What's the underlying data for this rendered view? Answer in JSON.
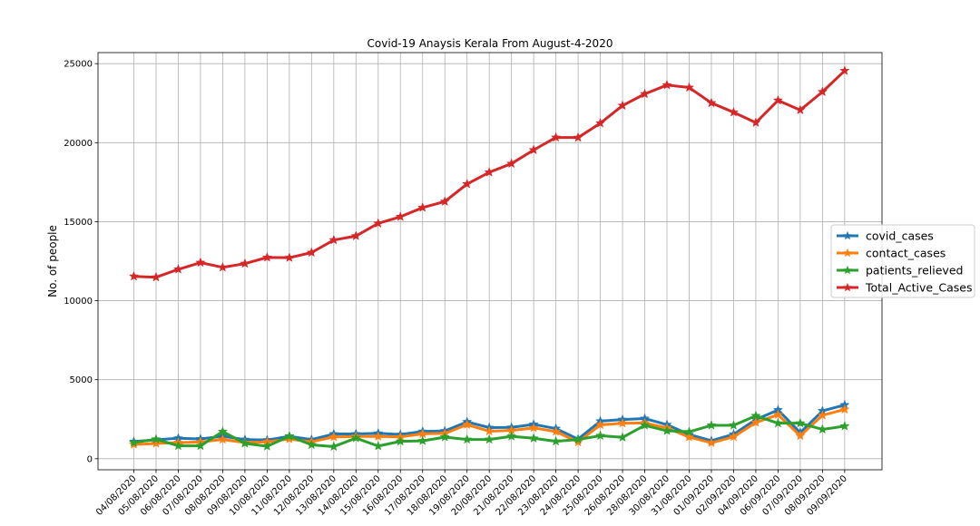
{
  "chart_data": {
    "type": "line",
    "title": "Covid-19 Anaysis Kerala From August-4-2020",
    "xlabel": "",
    "ylabel": "No. of people",
    "ylim": [
      -700,
      25700
    ],
    "yticks": [
      0,
      5000,
      10000,
      15000,
      20000,
      25000
    ],
    "grid": true,
    "legend_position": "right",
    "marker": "star",
    "categories": [
      "04/08/2020",
      "05/08/2020",
      "06/08/2020",
      "07/08/2020",
      "08/08/2020",
      "09/08/2020",
      "10/08/2020",
      "11/08/2020",
      "12/08/2020",
      "13/08/2020",
      "14/08/2020",
      "15/08/2020",
      "16/08/2020",
      "17/08/2020",
      "18/08/2020",
      "19/08/2020",
      "20/08/2020",
      "21/08/2020",
      "22/08/2020",
      "23/08/2020",
      "24/08/2020",
      "25/08/2020",
      "26/08/2020",
      "28/08/2020",
      "30/08/2020",
      "31/08/2020",
      "01/09/2020",
      "02/09/2020",
      "04/09/2020",
      "06/09/2020",
      "07/09/2020",
      "08/09/2020",
      "09/09/2020"
    ],
    "series": [
      {
        "name": "covid_cases",
        "color": "#1f77b4",
        "values": [
          1083,
          1195,
          1298,
          1251,
          1420,
          1211,
          1184,
          1417,
          1212,
          1564,
          1569,
          1608,
          1530,
          1725,
          1758,
          2333,
          1968,
          1983,
          2172,
          1908,
          1242,
          2375,
          2476,
          2543,
          2154,
          1530,
          1140,
          1547,
          2479,
          3082,
          1648,
          3026,
          3402
        ]
      },
      {
        "name": "contact_cases",
        "color": "#ff7f0e",
        "values": [
          902,
          964,
          1017,
          1061,
          1216,
          1021,
          1068,
          1242,
          1068,
          1380,
          1410,
          1409,
          1380,
          1572,
          1600,
          2151,
          1740,
          1790,
          1950,
          1718,
          1046,
          2142,
          2243,
          2260,
          1950,
          1367,
          1004,
          1384,
          2290,
          2781,
          1449,
          2745,
          3120
        ]
      },
      {
        "name": "patients_relieved",
        "color": "#2ca02c",
        "values": [
          1021,
          1234,
          815,
          814,
          1715,
          970,
          784,
          1426,
          880,
          766,
          1304,
          800,
          1099,
          1131,
          1365,
          1217,
          1217,
          1419,
          1292,
          1099,
          1211,
          1456,
          1351,
          2111,
          1766,
          1700,
          2111,
          2111,
          2716,
          2246,
          2246,
          1855,
          2058
        ]
      },
      {
        "name": "Total_Active_Cases",
        "color": "#d62728",
        "values": [
          11540,
          11484,
          11983,
          12411,
          12109,
          12347,
          12737,
          12721,
          13045,
          13838,
          14094,
          14891,
          15310,
          15890,
          16274,
          17382,
          18123,
          18673,
          19538,
          20330,
          20323,
          21232,
          22344,
          23081,
          23644,
          23488,
          22512,
          21923,
          21266,
          22676,
          22066,
          23217,
          24549
        ]
      }
    ]
  }
}
